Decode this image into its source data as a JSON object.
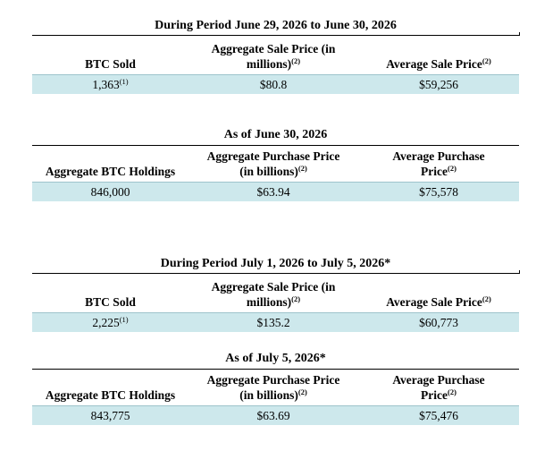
{
  "sale_period_1": {
    "title": "During Period June 29, 2026 to June 30, 2026",
    "headers": {
      "btc_sold": "BTC Sold",
      "agg_sale_price_line1": "Aggregate Sale Price (in",
      "agg_sale_price_line2": "millions)",
      "agg_sale_price_note": "(2)",
      "avg_sale_price": "Average Sale Price",
      "avg_sale_price_note": "(2)"
    },
    "values": {
      "btc_sold": "1,363",
      "btc_sold_note": "(1)",
      "agg_sale_price": "$80.8",
      "avg_sale_price": "$59,256"
    }
  },
  "holdings_1": {
    "title": "As of June 30, 2026",
    "headers": {
      "agg_holdings": "Aggregate BTC Holdings",
      "agg_purchase_price_line1": "Aggregate Purchase Price",
      "agg_purchase_price_line2": "(in billions)",
      "agg_purchase_price_note": "(2)",
      "avg_purchase_price_line1": "Average Purchase",
      "avg_purchase_price_line2": "Price",
      "avg_purchase_price_note": "(2)"
    },
    "values": {
      "agg_holdings": "846,000",
      "agg_purchase_price": "$63.94",
      "avg_purchase_price": "$75,578"
    }
  },
  "sale_period_2": {
    "title": "During Period July 1, 2026 to July 5, 2026*",
    "headers": {
      "btc_sold": "BTC Sold",
      "agg_sale_price_line1": "Aggregate Sale Price (in",
      "agg_sale_price_line2": "millions)",
      "agg_sale_price_note": "(2)",
      "avg_sale_price": "Average Sale Price",
      "avg_sale_price_note": "(2)"
    },
    "values": {
      "btc_sold": "2,225",
      "btc_sold_note": "(1)",
      "agg_sale_price": "$135.2",
      "avg_sale_price": "$60,773"
    }
  },
  "holdings_2": {
    "title": "As of July 5, 2026*",
    "headers": {
      "agg_holdings": "Aggregate BTC Holdings",
      "agg_purchase_price_line1": "Aggregate Purchase Price",
      "agg_purchase_price_line2": "(in billions)",
      "agg_purchase_price_note": "(2)",
      "avg_purchase_price_line1": "Average Purchase",
      "avg_purchase_price_line2": "Price",
      "avg_purchase_price_note": "(2)"
    },
    "values": {
      "agg_holdings": "843,775",
      "agg_purchase_price": "$63.69",
      "avg_purchase_price": "$75,476"
    }
  }
}
